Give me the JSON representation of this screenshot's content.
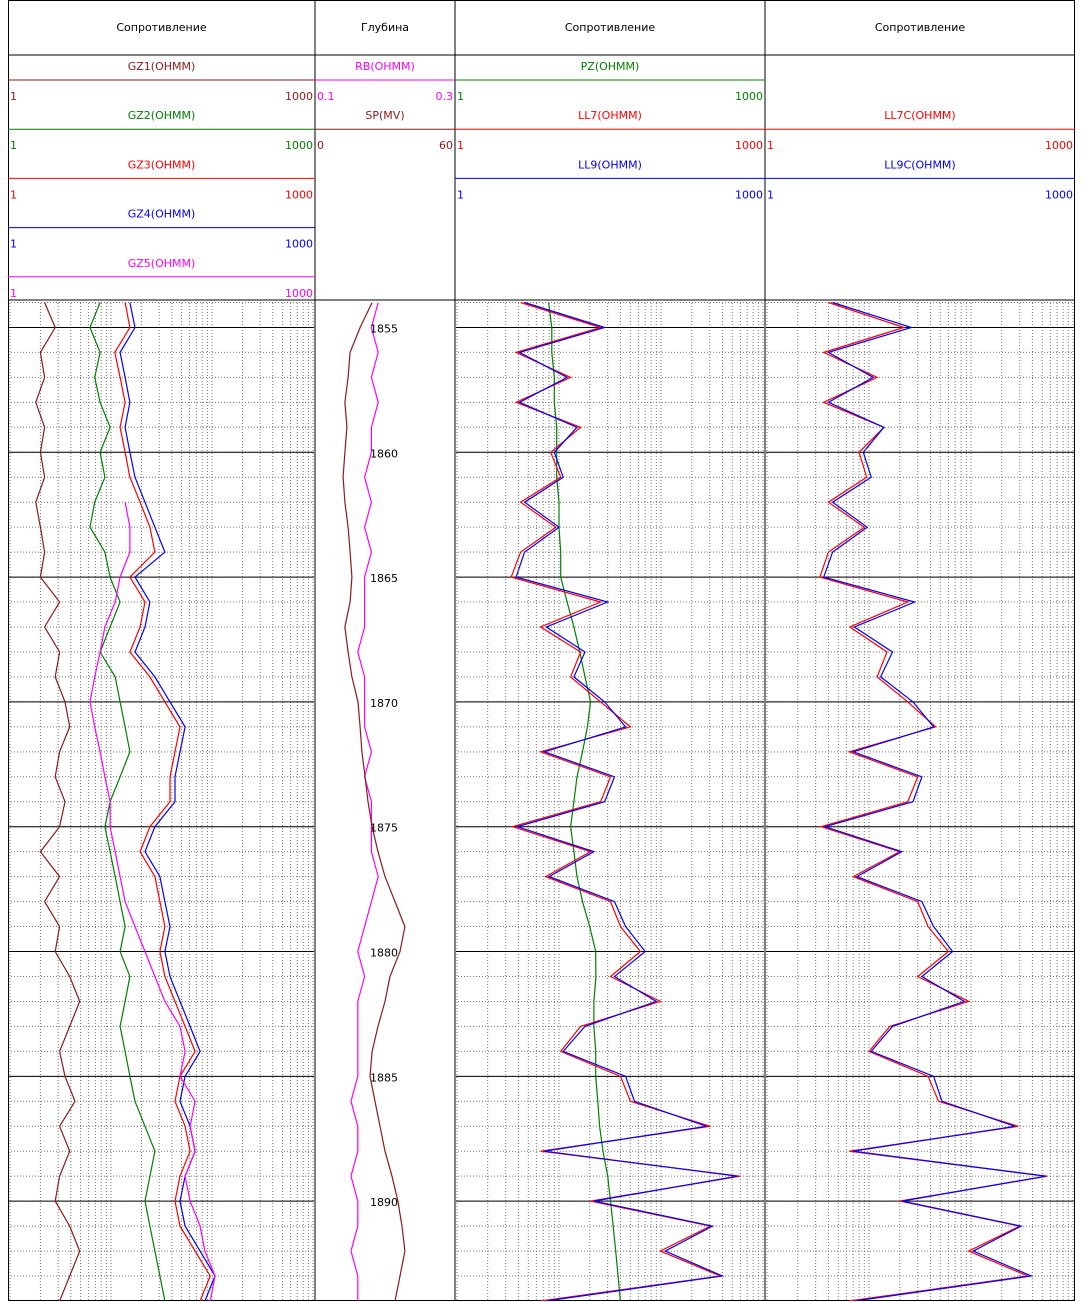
{
  "chart_data": {
    "type": "well-log",
    "depth": [
      1854,
      1855,
      1856,
      1857,
      1858,
      1859,
      1860,
      1861,
      1862,
      1863,
      1864,
      1865,
      1866,
      1867,
      1868,
      1869,
      1870,
      1871,
      1872,
      1873,
      1874,
      1875,
      1876,
      1877,
      1878,
      1879,
      1880,
      1881,
      1882,
      1883,
      1884,
      1885,
      1886,
      1887,
      1888,
      1889,
      1890,
      1891,
      1892,
      1893,
      1894
    ],
    "ylim": [
      1853.9,
      1894
    ],
    "yticks": [
      1855,
      1860,
      1865,
      1870,
      1875,
      1880,
      1885,
      1890
    ],
    "ygrid": [
      1854,
      1855,
      1856,
      1857,
      1858,
      1859,
      1860,
      1861,
      1862,
      1863,
      1864,
      1865,
      1866,
      1867,
      1868,
      1869,
      1870,
      1871,
      1872,
      1873,
      1874,
      1875,
      1876,
      1877,
      1878,
      1879,
      1880,
      1881,
      1882,
      1883,
      1884,
      1885,
      1886,
      1887,
      1888,
      1889,
      1890,
      1891,
      1892,
      1893
    ],
    "log_grid": [
      1,
      2,
      3,
      4,
      5,
      6,
      7,
      8,
      9,
      10,
      20,
      30,
      40,
      50,
      60,
      70,
      80,
      90,
      100,
      200,
      300,
      400,
      500,
      600,
      700,
      800,
      900,
      1000
    ],
    "tracks": [
      {
        "title": "Сопротивление",
        "log": true,
        "grid": true,
        "depth_labels": false,
        "curves": [
          {
            "name": "GZ1(OHMM)",
            "color": "#8b1a1a",
            "xlim": [
              1,
              1000
            ],
            "values": [
              2.2,
              2.8,
              2.0,
              2.2,
              1.8,
              2.2,
              2.0,
              2.2,
              1.8,
              2.0,
              2.2,
              2.0,
              3.1,
              2.2,
              3.1,
              2.8,
              3.5,
              3.9,
              3.1,
              2.8,
              3.5,
              3.1,
              2.0,
              3.1,
              2.2,
              3.1,
              2.8,
              3.9,
              4.9,
              3.9,
              3.1,
              3.5,
              4.4,
              3.1,
              3.9,
              3.1,
              2.8,
              3.9,
              4.9,
              3.9,
              3.1
            ]
          },
          {
            "name": "GZ2(OHMM)",
            "color": "#008000",
            "xlim": [
              1,
              1000
            ],
            "values": [
              7.8,
              6.2,
              7.8,
              6.9,
              7.8,
              9.8,
              7.8,
              8.7,
              6.9,
              6.2,
              8.7,
              9.8,
              12.3,
              9.8,
              7.8,
              11.0,
              12.3,
              13.8,
              15.4,
              12.3,
              9.8,
              8.7,
              9.8,
              11.0,
              12.3,
              13.8,
              12.3,
              15.4,
              13.8,
              12.3,
              13.8,
              15.4,
              17.3,
              21.7,
              27.2,
              24.3,
              21.7,
              24.3,
              27.2,
              30.5,
              34.2
            ]
          },
          {
            "name": "GZ3(OHMM)",
            "color": "#ff0000",
            "xlim": [
              1,
              1000
            ],
            "values": [
              13.8,
              15.4,
              10.9,
              12.3,
              13.8,
              12.3,
              13.8,
              15.4,
              19.4,
              24.3,
              27.2,
              15.4,
              21.7,
              19.4,
              15.4,
              24.3,
              34.2,
              48.2,
              43.0,
              38.4,
              38.4,
              24.3,
              19.4,
              27.2,
              30.5,
              34.2,
              30.5,
              34.2,
              43.0,
              54.1,
              68.0,
              48.2,
              43.0,
              54.1,
              60.7,
              48.2,
              43.0,
              48.2,
              68.0,
              95.9,
              76.3
            ]
          },
          {
            "name": "GZ4(OHMM)",
            "color": "#0000ff",
            "xlim": [
              1,
              1000
            ],
            "values": [
              15.4,
              17.3,
              12.3,
              13.8,
              15.4,
              13.8,
              15.4,
              17.3,
              21.7,
              27.2,
              34.2,
              17.3,
              24.3,
              21.7,
              17.3,
              27.2,
              38.4,
              54.1,
              48.2,
              43.0,
              43.0,
              27.2,
              21.7,
              30.5,
              34.2,
              38.4,
              34.2,
              38.4,
              48.2,
              60.7,
              76.3,
              54.1,
              48.2,
              60.7,
              68.0,
              54.1,
              48.2,
              54.1,
              76.3,
              107,
              85.0
            ]
          },
          {
            "name": "GZ5(OHMM)",
            "color": "#ff00ff",
            "xlim": [
              1,
              1000
            ],
            "values": [
              null,
              null,
              null,
              null,
              null,
              null,
              null,
              null,
              13.8,
              15.4,
              15.4,
              12.3,
              11.0,
              8.7,
              7.8,
              6.9,
              6.2,
              6.9,
              7.8,
              8.7,
              9.8,
              9.8,
              11.0,
              12.3,
              13.8,
              17.3,
              21.7,
              27.2,
              34.2,
              48.2,
              54.1,
              48.2,
              68.0,
              60.7,
              68.0,
              54.1,
              60.7,
              76.3,
              85.0,
              107,
              95.9
            ]
          }
        ]
      },
      {
        "title": "Глубина",
        "log": false,
        "grid": false,
        "depth_labels": true,
        "curves": [
          {
            "name": "RB(OHMM)",
            "color": "#ff00ff",
            "xlim": [
              0.1,
              0.3
            ],
            "values": [
              0.19,
              0.18,
              0.19,
              0.18,
              0.19,
              0.18,
              0.18,
              0.17,
              0.18,
              0.17,
              0.18,
              0.17,
              0.17,
              0.17,
              0.16,
              0.17,
              0.17,
              0.17,
              0.18,
              0.17,
              0.18,
              0.18,
              0.18,
              0.19,
              0.18,
              0.17,
              0.16,
              0.17,
              0.16,
              0.16,
              0.16,
              0.16,
              0.15,
              0.16,
              0.16,
              0.15,
              0.16,
              0.16,
              0.15,
              0.16,
              0.16
            ]
          },
          {
            "name": "SP(MV)",
            "color": "#8b1a1a",
            "xlim": [
              0,
              60
            ],
            "values": [
              24.3,
              19.0,
              14.6,
              13.7,
              12.3,
              13.2,
              12.3,
              11.5,
              12.3,
              13.7,
              14.6,
              15.4,
              14.6,
              12.3,
              13.7,
              15.4,
              18.1,
              19.0,
              19.8,
              21.2,
              22.5,
              24.3,
              26.9,
              30.0,
              34.4,
              38.8,
              36.6,
              32.2,
              30.0,
              26.9,
              24.3,
              23.4,
              25.6,
              27.8,
              30.0,
              33.1,
              35.7,
              37.5,
              38.8,
              36.6,
              34.4
            ]
          }
        ]
      },
      {
        "title": "Сопротивление",
        "log": true,
        "grid": true,
        "depth_labels": false,
        "curves": [
          {
            "name": "PZ(OHMM)",
            "color": "#008000",
            "xlim": [
              1,
              1000
            ],
            "values": [
              7.9,
              8.5,
              8.5,
              9.0,
              9.0,
              9.5,
              9.5,
              9.5,
              10,
              10,
              10.4,
              10.4,
              12,
              14,
              16,
              18,
              20.4,
              19,
              17,
              15,
              14,
              13,
              14,
              15,
              17,
              20,
              22.9,
              23,
              22,
              22,
              22.9,
              22.9,
              24,
              25,
              27,
              30,
              32,
              34,
              36,
              38,
              40
            ]
          },
          {
            "name": "LL7(OHMM)",
            "color": "#ff0000",
            "xlim": [
              1,
              1000
            ],
            "values": [
              4.2,
              25.6,
              3.8,
              13.0,
              3.8,
              16.3,
              8.3,
              10.4,
              4.2,
              9.3,
              4.2,
              3.4,
              25.6,
              6.6,
              16.3,
              13.0,
              25.6,
              50.1,
              6.6,
              32.0,
              25.6,
              3.5,
              20.4,
              7.4,
              32.0,
              40.1,
              62.8,
              32.0,
              98.4,
              16.3,
              10.4,
              40.1,
              50.1,
              304,
              6.6,
              596,
              20.4,
              304,
              98.4,
              381,
              6.6
            ]
          },
          {
            "name": "LL9(OHMM)",
            "color": "#0000ff",
            "xlim": [
              1,
              1000
            ],
            "values": [
              4.6,
              28,
              4.1,
              12,
              4.1,
              15,
              9.0,
              11,
              4.6,
              10,
              4.6,
              3.8,
              30,
              7.5,
              18,
              14,
              28,
              45,
              7.2,
              35,
              28,
              3.9,
              22,
              8,
              35,
              45,
              70,
              35,
              90,
              18,
              11,
              45,
              55,
              280,
              7.2,
              560,
              22,
              320,
              110,
              400,
              7.5
            ]
          }
        ]
      },
      {
        "title": "Сопротивление",
        "log": true,
        "grid": true,
        "depth_labels": false,
        "curves": [
          {
            "name": "LL7C(OHMM)",
            "color": "#ff0000",
            "xlim": [
              1,
              1000
            ],
            "values": [
              4.0,
              22,
              3.6,
              12,
              3.6,
              14,
              8,
              9.5,
              4.0,
              9,
              4.0,
              3.3,
              24,
              6.5,
              15,
              12,
              24,
              45,
              6.4,
              30,
              24,
              3.4,
              20,
              7,
              30,
              38,
              60,
              30,
              95,
              16,
              10,
              38,
              48,
              290,
              6.4,
              560,
              20,
              300,
              95,
              360,
              6.4
            ]
          },
          {
            "name": "LL9C(OHMM)",
            "color": "#0000ff",
            "xlim": [
              1,
              1000
            ],
            "values": [
              4.4,
              26,
              4.0,
              11,
              4.0,
              14,
              8.8,
              10.5,
              4.4,
              9.6,
              4.4,
              3.6,
              28,
              7.2,
              17,
              13,
              27,
              43,
              7,
              33,
              27,
              3.7,
              21,
              7.6,
              33,
              43,
              66,
              33,
              86,
              17,
              10.5,
              43,
              52,
              270,
              7,
              540,
              21,
              310,
              105,
              390,
              7.2
            ]
          }
        ]
      }
    ]
  }
}
